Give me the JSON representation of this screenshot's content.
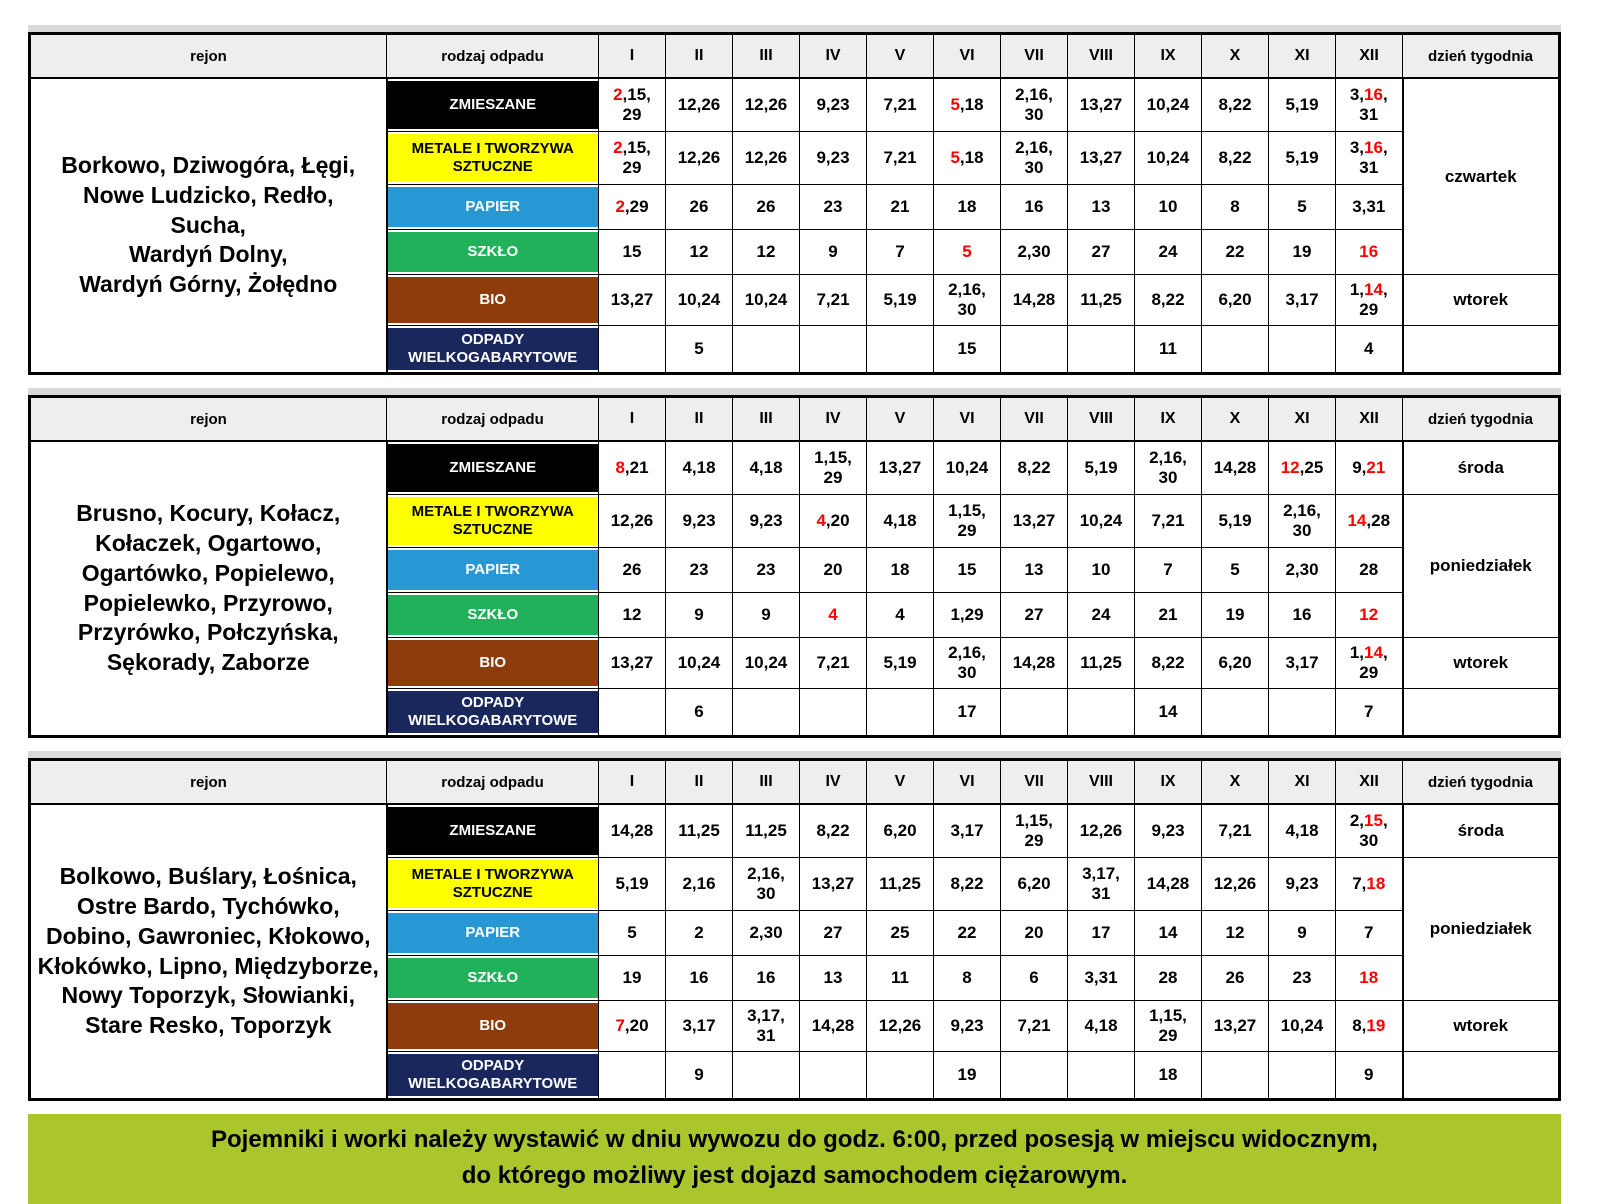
{
  "colors": {
    "red": "#ff0000",
    "border": "#000000",
    "header_bg": "#eeeeee",
    "topbar": "#d9d9d9",
    "footer_bg": "#abc52d",
    "page_bg": "#ffffff"
  },
  "headers": {
    "rejon": "rejon",
    "rodzaj_odpadu": "rodzaj odpadu",
    "months": [
      "I",
      "II",
      "III",
      "IV",
      "V",
      "VI",
      "VII",
      "VIII",
      "IX",
      "X",
      "XI",
      "XII"
    ],
    "dzien_tygodnia": "dzień tygodnia"
  },
  "waste_types": [
    {
      "key": "zmieszane",
      "label": "ZMIESZANE",
      "bg": "#000000",
      "fg": "#ffffff"
    },
    {
      "key": "metale-i-tworzywa-sztuczne",
      "label": "METALE I TWORZYWA SZTUCZNE",
      "bg": "#ffff00",
      "fg": "#000000"
    },
    {
      "key": "papier",
      "label": "PAPIER",
      "bg": "#2898d4",
      "fg": "#ffffff"
    },
    {
      "key": "szklo",
      "label": "SZKŁO",
      "bg": "#22b15b",
      "fg": "#ffffff"
    },
    {
      "key": "bio",
      "label": "BIO",
      "bg": "#8e3c0b",
      "fg": "#ffffff"
    },
    {
      "key": "odpady-wielkogabarytowe",
      "label": "ODPADY WIELKOGABARYTOWE",
      "bg": "#19275d",
      "fg": "#ffffff"
    }
  ],
  "tables": [
    {
      "region_lines": [
        "Borkowo, Dziwogóra, Łęgi,",
        "Nowe Ludzicko, Redło,",
        "Sucha,",
        "Wardyń Dolny,",
        "Wardyń Górny, Żołędno"
      ],
      "rows": [
        [
          "{2},15,\n29",
          "12,26",
          "12,26",
          "9,23",
          "7,21",
          "{5},18",
          "2,16,\n30",
          "13,27",
          "10,24",
          "8,22",
          "5,19",
          "3,{16},\n31"
        ],
        [
          "{2},15,\n29",
          "12,26",
          "12,26",
          "9,23",
          "7,21",
          "{5},18",
          "2,16,\n30",
          "13,27",
          "10,24",
          "8,22",
          "5,19",
          "3,{16},\n31"
        ],
        [
          "{2},29",
          "26",
          "26",
          "23",
          "21",
          "18",
          "16",
          "13",
          "10",
          "8",
          "5",
          "3,31"
        ],
        [
          "15",
          "12",
          "12",
          "9",
          "7",
          "{5}",
          "2,30",
          "27",
          "24",
          "22",
          "19",
          "{16}"
        ],
        [
          "13,27",
          "10,24",
          "10,24",
          "7,21",
          "5,19",
          "2,16,\n30",
          "14,28",
          "11,25",
          "8,22",
          "6,20",
          "3,17",
          "1,{14},\n29"
        ],
        [
          "",
          "5",
          "",
          "",
          "",
          "15",
          "",
          "",
          "11",
          "",
          "",
          "4"
        ]
      ],
      "days": [
        {
          "label": "czwartek",
          "rowspan": 4
        },
        {
          "label": "wtorek",
          "rowspan": 1
        },
        {
          "label": "",
          "rowspan": 1
        }
      ]
    },
    {
      "region_lines": [
        "Brusno, Kocury, Kołacz,",
        "Kołaczek, Ogartowo,",
        "Ogartówko, Popielewo,",
        "Popielewko, Przyrowo,",
        "Przyrówko, Połczyńska,",
        "Sękorady, Zaborze"
      ],
      "rows": [
        [
          "{8},21",
          "4,18",
          "4,18",
          "1,15,\n29",
          "13,27",
          "10,24",
          "8,22",
          "5,19",
          "2,16,\n30",
          "14,28",
          "{12},25",
          "9,{21}"
        ],
        [
          "12,26",
          "9,23",
          "9,23",
          "{4},20",
          "4,18",
          "1,15,\n29",
          "13,27",
          "10,24",
          "7,21",
          "5,19",
          "2,16,\n30",
          "{14},28"
        ],
        [
          "26",
          "23",
          "23",
          "20",
          "18",
          "15",
          "13",
          "10",
          "7",
          "5",
          "2,30",
          "28"
        ],
        [
          "12",
          "9",
          "9",
          "{4}",
          "4",
          "1,29",
          "27",
          "24",
          "21",
          "19",
          "16",
          "{12}"
        ],
        [
          "13,27",
          "10,24",
          "10,24",
          "7,21",
          "5,19",
          "2,16,\n30",
          "14,28",
          "11,25",
          "8,22",
          "6,20",
          "3,17",
          "1,{14},\n29"
        ],
        [
          "",
          "6",
          "",
          "",
          "",
          "17",
          "",
          "",
          "14",
          "",
          "",
          "7"
        ]
      ],
      "days": [
        {
          "label": "środa",
          "rowspan": 1
        },
        {
          "label": "poniedziałek",
          "rowspan": 3
        },
        {
          "label": "wtorek",
          "rowspan": 1
        },
        {
          "label": "",
          "rowspan": 1
        }
      ]
    },
    {
      "region_lines": [
        "Bolkowo, Buślary, Łośnica,",
        "Ostre Bardo, Tychówko,",
        "Dobino, Gawroniec, Kłokowo,",
        "Kłokówko, Lipno, Międzyborze,",
        "Nowy Toporzyk, Słowianki,",
        "Stare Resko, Toporzyk"
      ],
      "rows": [
        [
          "14,28",
          "11,25",
          "11,25",
          "8,22",
          "6,20",
          "3,17",
          "1,15,\n29",
          "12,26",
          "9,23",
          "7,21",
          "4,18",
          "2,{15},\n30"
        ],
        [
          "5,19",
          "2,16",
          "2,16,\n30",
          "13,27",
          "11,25",
          "8,22",
          "6,20",
          "3,17,\n31",
          "14,28",
          "12,26",
          "9,23",
          "7,{18}"
        ],
        [
          "5",
          "2",
          "2,30",
          "27",
          "25",
          "22",
          "20",
          "17",
          "14",
          "12",
          "9",
          "7"
        ],
        [
          "19",
          "16",
          "16",
          "13",
          "11",
          "8",
          "6",
          "3,31",
          "28",
          "26",
          "23",
          "{18}"
        ],
        [
          "{7},20",
          "3,17",
          "3,17,\n31",
          "14,28",
          "12,26",
          "9,23",
          "7,21",
          "4,18",
          "1,15,\n29",
          "13,27",
          "10,24",
          "8,{19}"
        ],
        [
          "",
          "9",
          "",
          "",
          "",
          "19",
          "",
          "",
          "18",
          "",
          "",
          "9"
        ]
      ],
      "days": [
        {
          "label": "środa",
          "rowspan": 1
        },
        {
          "label": "poniedziałek",
          "rowspan": 3
        },
        {
          "label": "wtorek",
          "rowspan": 1
        },
        {
          "label": "",
          "rowspan": 1
        }
      ]
    }
  ],
  "footer": {
    "lines": [
      "Pojemniki i worki należy wystawić w dniu wywozu do godz. 6:00, przed posesją w miejscu widocznym,",
      "do którego możliwy jest dojazd samochodem ciężarowym."
    ]
  }
}
